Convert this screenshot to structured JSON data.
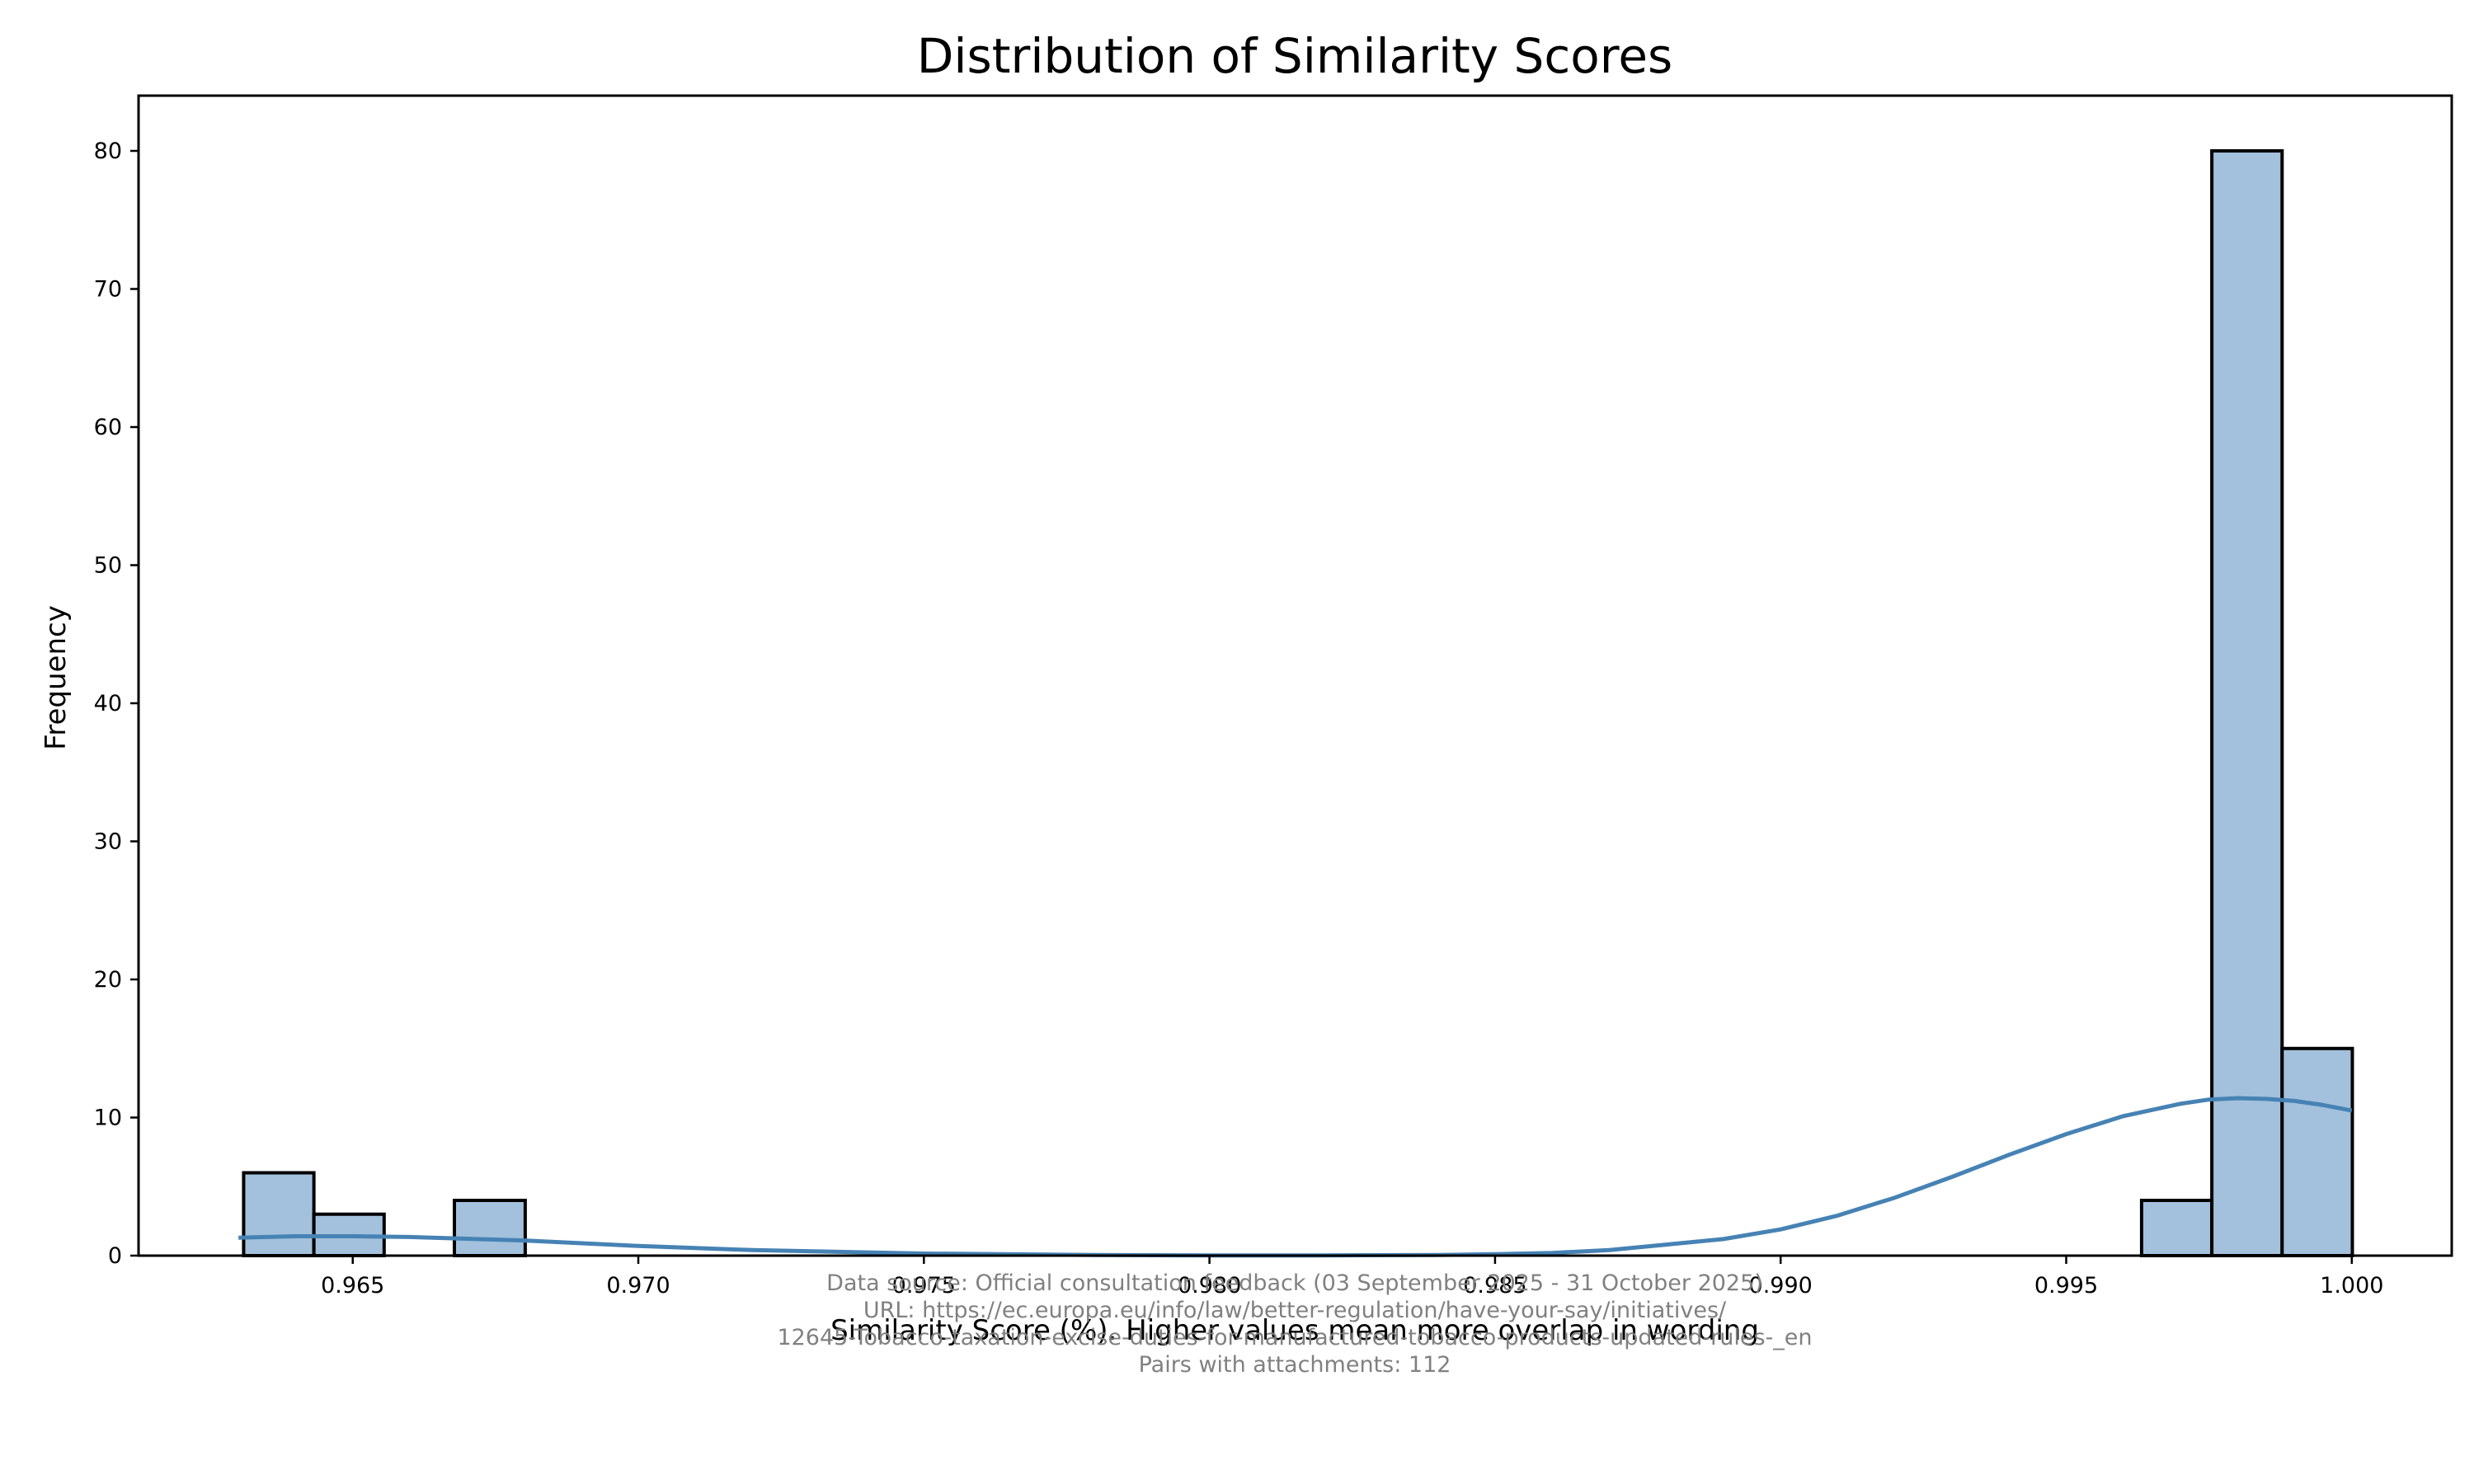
{
  "chart_data": {
    "type": "bar",
    "title": "Distribution of Similarity Scores",
    "xlabel": "Similarity Score (%). Higher values mean more overlap in wording",
    "ylabel": "Frequency",
    "xlim": [
      0.96125,
      1.00175
    ],
    "ylim": [
      0,
      84
    ],
    "x_ticks": [
      "0.965",
      "0.970",
      "0.975",
      "0.980",
      "0.985",
      "0.990",
      "0.995",
      "1.000"
    ],
    "y_ticks": [
      "0",
      "10",
      "20",
      "30",
      "40",
      "50",
      "60",
      "70",
      "80"
    ],
    "bin_width": 0.001231,
    "bins": [
      {
        "x0": 0.96309,
        "x1": 0.96432,
        "count": 6
      },
      {
        "x0": 0.96432,
        "x1": 0.96555,
        "count": 3
      },
      {
        "x0": 0.96555,
        "x1": 0.96678,
        "count": 0
      },
      {
        "x0": 0.96678,
        "x1": 0.96802,
        "count": 4
      },
      {
        "x0": 0.99632,
        "x1": 0.99755,
        "count": 4
      },
      {
        "x0": 0.99755,
        "x1": 0.99878,
        "count": 80
      },
      {
        "x0": 0.99878,
        "x1": 1.00001,
        "count": 15
      }
    ],
    "kde": {
      "x": [
        0.963,
        0.964,
        0.965,
        0.966,
        0.968,
        0.97,
        0.972,
        0.975,
        0.978,
        0.98,
        0.982,
        0.984,
        0.985,
        0.986,
        0.987,
        0.988,
        0.989,
        0.99,
        0.991,
        0.992,
        0.993,
        0.994,
        0.995,
        0.996,
        0.997,
        0.9975,
        0.998,
        0.9985,
        0.999,
        0.9995,
        1.0
      ],
      "y": [
        1.3,
        1.4,
        1.4,
        1.35,
        1.1,
        0.7,
        0.4,
        0.15,
        0.05,
        0.02,
        0.02,
        0.05,
        0.1,
        0.2,
        0.4,
        0.8,
        1.2,
        1.9,
        2.9,
        4.2,
        5.7,
        7.3,
        8.8,
        10.1,
        11.0,
        11.3,
        11.4,
        11.35,
        11.2,
        10.9,
        10.5
      ]
    }
  },
  "source_note": {
    "line1": "Data source: Official consultation feedback (03 September 2025 - 31 October 2025)",
    "line2": "URL: https://ec.europa.eu/info/law/better-regulation/have-your-say/initiatives/",
    "line3": "12645-Tobacco-taxation-excise-duties-for-manufactured-tobacco-products-updated-rules-_en",
    "line4": "Pairs with attachments: 112"
  }
}
